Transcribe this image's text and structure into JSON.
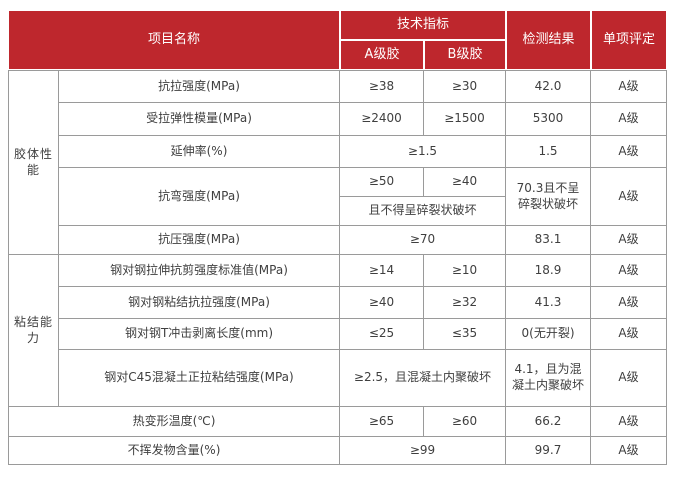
{
  "colors": {
    "header_red": "#be272d",
    "border_gray": "#9a9a9a",
    "text_dark": "#3f3f3f",
    "header_text": "#ffffff"
  },
  "table": {
    "header": {
      "project_name": "项目名称",
      "tech_spec": "技术指标",
      "grade_a": "A级胶",
      "grade_b": "B级胶",
      "test_result": "检测结果",
      "item_rating": "单项评定"
    },
    "groups": {
      "adhesive": "胶体性能",
      "bonding": "粘结能力"
    },
    "rows": [
      {
        "name": "抗拉强度(MPa)",
        "a": "≥38",
        "b": "≥30",
        "result": "42.0",
        "rating": "A级"
      },
      {
        "name": "受拉弹性模量(MPa)",
        "a": "≥2400",
        "b": "≥1500",
        "result": "5300",
        "rating": "A级"
      },
      {
        "name": "延伸率(%)",
        "ab": "≥1.5",
        "result": "1.5",
        "rating": "A级"
      },
      {
        "name": "抗弯强度(MPa)",
        "a": "≥50",
        "b": "≥40",
        "ab_note": "且不得呈碎裂状破坏",
        "result": "70.3且不呈\n碎裂状破坏",
        "rating": "A级"
      },
      {
        "name": "抗压强度(MPa)",
        "ab": "≥70",
        "result": "83.1",
        "rating": "A级"
      },
      {
        "name": "钢对钢拉伸抗剪强度标准值(MPa)",
        "a": "≥14",
        "b": "≥10",
        "result": "18.9",
        "rating": "A级"
      },
      {
        "name": "钢对钢粘结抗拉强度(MPa)",
        "a": "≥40",
        "b": "≥32",
        "result": "41.3",
        "rating": "A级"
      },
      {
        "name": "钢对钢T冲击剥离长度(mm)",
        "a": "≤25",
        "b": "≤35",
        "result": "0(无开裂)",
        "rating": "A级"
      },
      {
        "name": "钢对C45混凝土正拉粘结强度(MPa)",
        "ab": "≥2.5，且混凝土内聚破坏",
        "result": "4.1，且为混\n凝土内聚破坏",
        "rating": "A级"
      },
      {
        "name": "热变形温度(℃)",
        "a": "≥65",
        "b": "≥60",
        "result": "66.2",
        "rating": "A级"
      },
      {
        "name": "不挥发物含量(%)",
        "ab": "≥99",
        "result": "99.7",
        "rating": "A级"
      }
    ]
  }
}
